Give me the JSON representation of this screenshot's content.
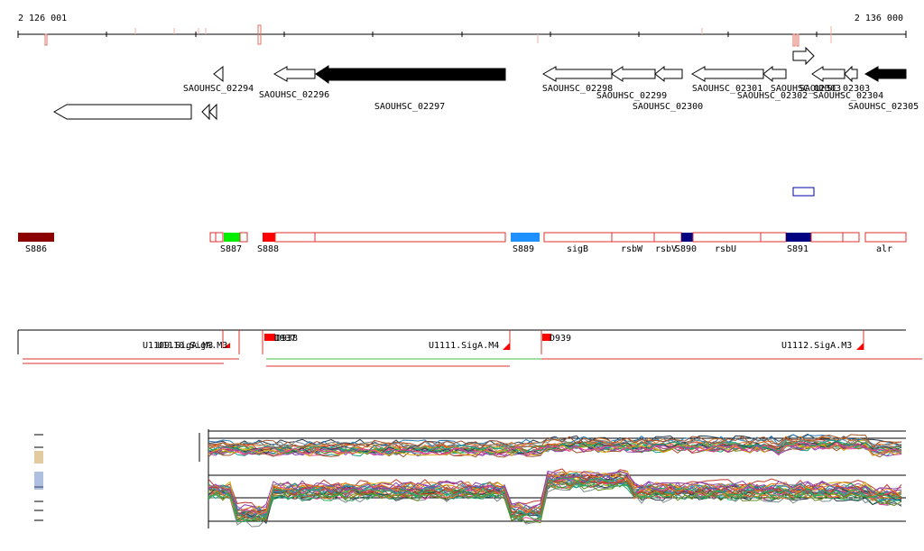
{
  "ruler": {
    "start_label": "2 126 001",
    "end_label": "2 136 000"
  },
  "genes": [
    {
      "id": "SAOUHSC_02294",
      "strand": "-",
      "fill": "white"
    },
    {
      "id": "SAOUHSC_02296",
      "strand": "-",
      "fill": "white"
    },
    {
      "id": "SAOUHSC_02297",
      "strand": "-",
      "fill": "black"
    },
    {
      "id": "SAOUHSC_02298",
      "strand": "-",
      "fill": "white"
    },
    {
      "id": "SAOUHSC_02299",
      "strand": "-",
      "fill": "white"
    },
    {
      "id": "SAOUHSC_02300",
      "strand": "-",
      "fill": "white"
    },
    {
      "id": "SAOUHSC_02301",
      "strand": "-",
      "fill": "white"
    },
    {
      "id": "SAOUHSC_02302",
      "strand": "-",
      "fill": "white"
    },
    {
      "id": "SAOUHSC_02303",
      "strand": "-",
      "fill": "white"
    },
    {
      "id": "SAOUHSC_02304",
      "strand": "-",
      "fill": "white"
    },
    {
      "id": "SAOUHSC_02305",
      "strand": "-",
      "fill": "black"
    }
  ],
  "gene_overlap_label": "SAOUHSC_02303",
  "regions": [
    {
      "label": "S886",
      "color": "#8b0000"
    },
    {
      "label": "S887",
      "color": "#00ee00"
    },
    {
      "label": "S888",
      "color": "#ff0000"
    },
    {
      "label": "S889",
      "color": "#1e90ff"
    },
    {
      "label": "sigB",
      "color": ""
    },
    {
      "label": "rsbW",
      "color": ""
    },
    {
      "label": "rsbV",
      "color": ""
    },
    {
      "label": "S890",
      "color": "#000080"
    },
    {
      "label": "rsbU",
      "color": ""
    },
    {
      "label": "S891",
      "color": "#000080"
    },
    {
      "label": "alr",
      "color": ""
    }
  ],
  "transcripts": [
    {
      "label": "U1109.SigA.M3"
    },
    {
      "label": "U1110.SigA.M3"
    },
    {
      "label": "U1111.SigA.M4"
    },
    {
      "label": "U1112.SigA.M3"
    }
  ],
  "tss_labels": [
    "D937",
    "D938",
    "D939"
  ],
  "colors": {
    "feature_outline": "#e03030",
    "gene_fill": "#000000",
    "segment_outline": "#0000aa",
    "green_line": "#44bb44"
  }
}
